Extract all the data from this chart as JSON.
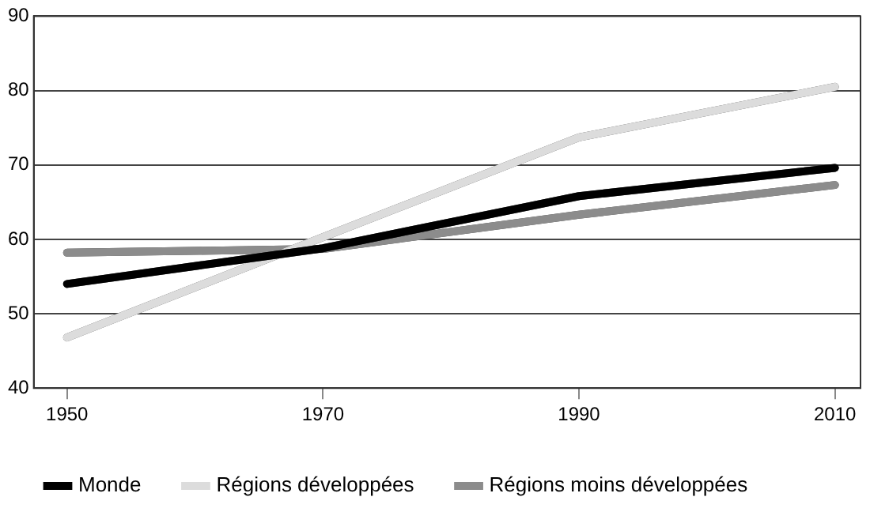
{
  "chart_data": {
    "type": "line",
    "x": [
      1950,
      1970,
      1990,
      2010
    ],
    "xlim": [
      1947.4,
      2012
    ],
    "xticks": [
      1950,
      1970,
      1990,
      2010
    ],
    "ylim": [
      40,
      90
    ],
    "yticks": [
      40,
      50,
      60,
      70,
      80,
      90
    ],
    "grid": "y",
    "legend": "bottom",
    "marker": "none",
    "line_style": "solid",
    "series": [
      {
        "name": "Monde",
        "color": "#000000",
        "values": [
          54,
          58.8,
          65.8,
          69.6
        ]
      },
      {
        "name": "Régions développées",
        "color": "#dcdcdc",
        "values": [
          46.8,
          60.3,
          73.7,
          80.5
        ]
      },
      {
        "name": "Régions moins développées",
        "color": "#8c8c8c",
        "values": [
          58.2,
          58.7,
          63.3,
          67.3
        ]
      }
    ]
  }
}
